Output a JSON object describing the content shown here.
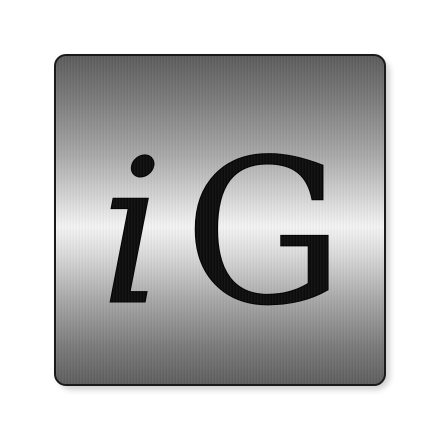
{
  "logo": {
    "letter_i": "i",
    "letter_g": "G",
    "icon": "ig-logo-icon",
    "colors": {
      "glyph": "#0c0c0c",
      "border": "#1a1a1a",
      "metal_dark": "#5c5c5c",
      "metal_light": "#f4f4f4"
    }
  }
}
